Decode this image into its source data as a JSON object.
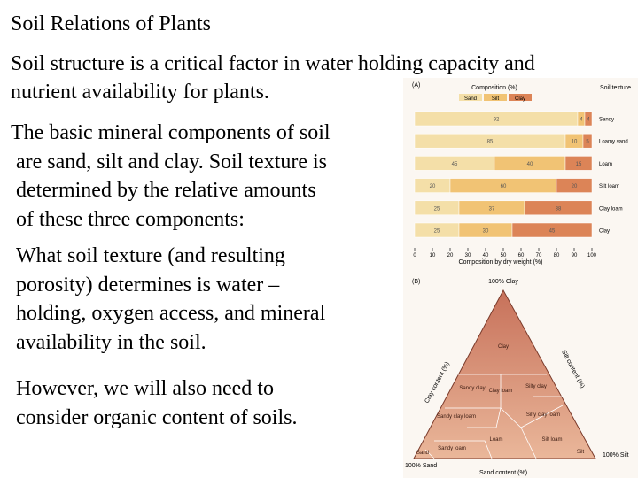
{
  "title": "Soil Relations of Plants",
  "intro": [
    "Soil structure is a critical factor in water holding capacity and",
    "nutrient availability for plants."
  ],
  "paragraphs": [
    [
      "The basic mineral components of soil",
      "are sand, silt and clay. Soil texture is",
      "determined by the relative amounts",
      "of these three components:"
    ],
    [
      "What soil texture (and resulting",
      "porosity) determines is water –",
      "holding, oxygen access, and mineral",
      "availability in the soil."
    ],
    [
      "However, we will also need to",
      "consider organic content of soils."
    ]
  ],
  "figure": {
    "panel_a": {
      "label": "(A)",
      "header": "Composition (%)",
      "texture_header": "Soil texture",
      "axis_title": "Composition by dry weight (%)",
      "xlim": [
        0,
        100
      ],
      "xticks": [
        0,
        10,
        20,
        30,
        40,
        50,
        60,
        70,
        80,
        90,
        100
      ],
      "series": [
        {
          "name": "Sand",
          "color": "#f4dfa8"
        },
        {
          "name": "Silt",
          "color": "#f1c374"
        },
        {
          "name": "Clay",
          "color": "#dc8457"
        }
      ],
      "rows": [
        {
          "texture": "Sandy",
          "values": [
            92,
            4,
            4
          ]
        },
        {
          "texture": "Loamy sand",
          "values": [
            85,
            10,
            5
          ]
        },
        {
          "texture": "Loam",
          "values": [
            45,
            40,
            15
          ]
        },
        {
          "texture": "Silt loam",
          "values": [
            20,
            60,
            20
          ]
        },
        {
          "texture": "Clay loam",
          "values": [
            25,
            37,
            38
          ]
        },
        {
          "texture": "Clay",
          "values": [
            25,
            30,
            45
          ]
        }
      ]
    },
    "panel_b": {
      "label": "(B)",
      "clay_axis": "Clay content (%)",
      "silt_axis": "Silt content (%)",
      "sand_axis": "Sand content (%)",
      "corner_clay": "100% Clay",
      "corner_sand": "100% Sand",
      "corner_silt": "100% Silt",
      "regions": [
        "Clay",
        "Sandy clay",
        "Silty clay",
        "Clay loam",
        "Sandy clay loam",
        "Silty clay loam",
        "Loam",
        "Sandy loam",
        "Silt loam",
        "Sand",
        "Silt"
      ]
    }
  }
}
